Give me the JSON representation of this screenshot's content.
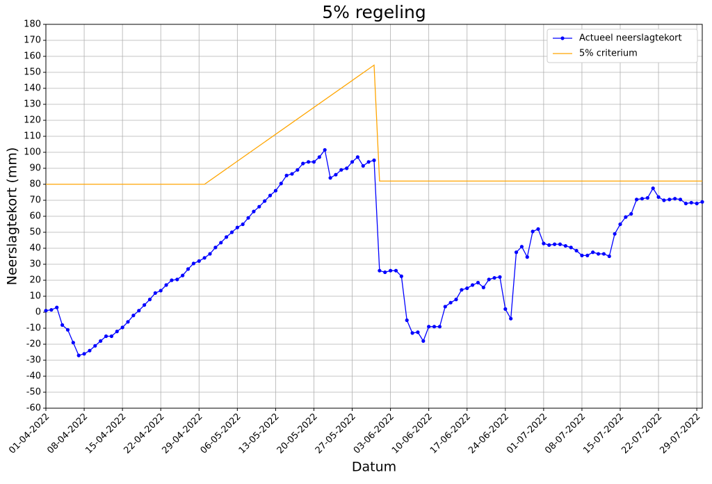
{
  "chart_data": {
    "type": "line",
    "title": "5% regeling",
    "x_label": "Datum",
    "y_label": "Neerslagtekort (mm)",
    "xlim": [
      "01-04-2022",
      "30-07-2022"
    ],
    "xticks": [
      "01-04-2022",
      "08-04-2022",
      "15-04-2022",
      "22-04-2022",
      "29-04-2022",
      "06-05-2022",
      "13-05-2022",
      "20-05-2022",
      "27-05-2022",
      "03-06-2022",
      "10-06-2022",
      "17-06-2022",
      "24-06-2022",
      "01-07-2022",
      "08-07-2022",
      "15-07-2022",
      "22-07-2022",
      "29-07-2022"
    ],
    "ylim": [
      -60,
      180
    ],
    "yticks": [
      -60,
      -50,
      -40,
      -30,
      -20,
      -10,
      0,
      10,
      20,
      30,
      40,
      50,
      60,
      70,
      80,
      90,
      100,
      110,
      120,
      130,
      140,
      150,
      160,
      170,
      180
    ],
    "grid": true,
    "legend": "upper right",
    "series": [
      {
        "name": "Actueel neerslagtekort",
        "color": "#0000ff",
        "marker": true,
        "x": [
          "01-04-2022",
          "02-04-2022",
          "03-04-2022",
          "04-04-2022",
          "05-04-2022",
          "06-04-2022",
          "07-04-2022",
          "08-04-2022",
          "09-04-2022",
          "10-04-2022",
          "11-04-2022",
          "12-04-2022",
          "13-04-2022",
          "14-04-2022",
          "15-04-2022",
          "16-04-2022",
          "17-04-2022",
          "18-04-2022",
          "19-04-2022",
          "20-04-2022",
          "21-04-2022",
          "22-04-2022",
          "23-04-2022",
          "24-04-2022",
          "25-04-2022",
          "26-04-2022",
          "27-04-2022",
          "28-04-2022",
          "29-04-2022",
          "30-04-2022",
          "01-05-2022",
          "02-05-2022",
          "03-05-2022",
          "04-05-2022",
          "05-05-2022",
          "06-05-2022",
          "07-05-2022",
          "08-05-2022",
          "09-05-2022",
          "10-05-2022",
          "11-05-2022",
          "12-05-2022",
          "13-05-2022",
          "14-05-2022",
          "15-05-2022",
          "16-05-2022",
          "17-05-2022",
          "18-05-2022",
          "19-05-2022",
          "20-05-2022",
          "21-05-2022",
          "22-05-2022",
          "23-05-2022",
          "24-05-2022",
          "25-05-2022",
          "26-05-2022",
          "27-05-2022",
          "28-05-2022",
          "29-05-2022",
          "30-05-2022",
          "31-05-2022",
          "01-06-2022",
          "02-06-2022",
          "03-06-2022",
          "04-06-2022",
          "05-06-2022",
          "06-06-2022",
          "07-06-2022",
          "08-06-2022",
          "09-06-2022",
          "10-06-2022",
          "11-06-2022",
          "12-06-2022",
          "13-06-2022",
          "14-06-2022",
          "15-06-2022",
          "16-06-2022",
          "17-06-2022",
          "18-06-2022",
          "19-06-2022",
          "20-06-2022",
          "21-06-2022",
          "22-06-2022",
          "23-06-2022",
          "24-06-2022",
          "25-06-2022",
          "26-06-2022",
          "27-06-2022",
          "28-06-2022",
          "29-06-2022",
          "30-06-2022",
          "01-07-2022",
          "02-07-2022",
          "03-07-2022",
          "04-07-2022",
          "05-07-2022",
          "06-07-2022",
          "07-07-2022",
          "08-07-2022",
          "09-07-2022",
          "10-07-2022",
          "11-07-2022",
          "12-07-2022",
          "13-07-2022",
          "14-07-2022",
          "15-07-2022",
          "16-07-2022",
          "17-07-2022",
          "18-07-2022",
          "19-07-2022",
          "20-07-2022",
          "21-07-2022",
          "22-07-2022",
          "23-07-2022",
          "24-07-2022",
          "25-07-2022",
          "26-07-2022",
          "27-07-2022",
          "28-07-2022",
          "29-07-2022",
          "30-07-2022"
        ],
        "values": [
          1,
          1.5,
          3,
          -8,
          -11,
          -19,
          -27,
          -26,
          -24,
          -21,
          -18,
          -15,
          -15,
          -12,
          -9.5,
          -6,
          -2,
          1,
          4.5,
          8,
          12,
          13.5,
          17,
          20,
          20.5,
          23,
          27,
          30.5,
          32,
          34,
          36.5,
          40.5,
          43.5,
          47,
          50,
          53,
          55,
          59,
          63,
          66,
          69.5,
          73,
          76,
          80.5,
          85.5,
          86.5,
          89,
          93,
          94,
          94,
          97,
          101.5,
          84,
          86,
          89,
          90,
          94,
          97,
          91.5,
          94,
          95,
          26,
          25,
          26,
          26,
          22.5,
          -5,
          -13,
          -12.5,
          -18,
          -9,
          -9,
          -9,
          3.5,
          6,
          8,
          14,
          15,
          17,
          18.5,
          15.5,
          20.5,
          21.5,
          22,
          2,
          -4,
          37.5,
          41,
          34.5,
          50.5,
          52,
          43,
          42,
          42.5,
          42.5,
          41.5,
          40.5,
          38.5,
          35.5,
          35.5,
          37.5,
          36.5,
          36.5,
          35,
          49,
          55,
          59.5,
          61.5,
          70.5,
          71,
          71.5,
          77.5,
          72,
          70,
          70.5,
          71,
          70.5,
          68,
          68.5,
          68,
          69
        ]
      },
      {
        "name": "5% criterium",
        "color": "#ffa500",
        "marker": false,
        "x": [
          "01-04-2022",
          "30-04-2022",
          "31-05-2022",
          "01-06-2022",
          "30-07-2022"
        ],
        "values": [
          80,
          80,
          154.5,
          82,
          82
        ]
      }
    ]
  }
}
